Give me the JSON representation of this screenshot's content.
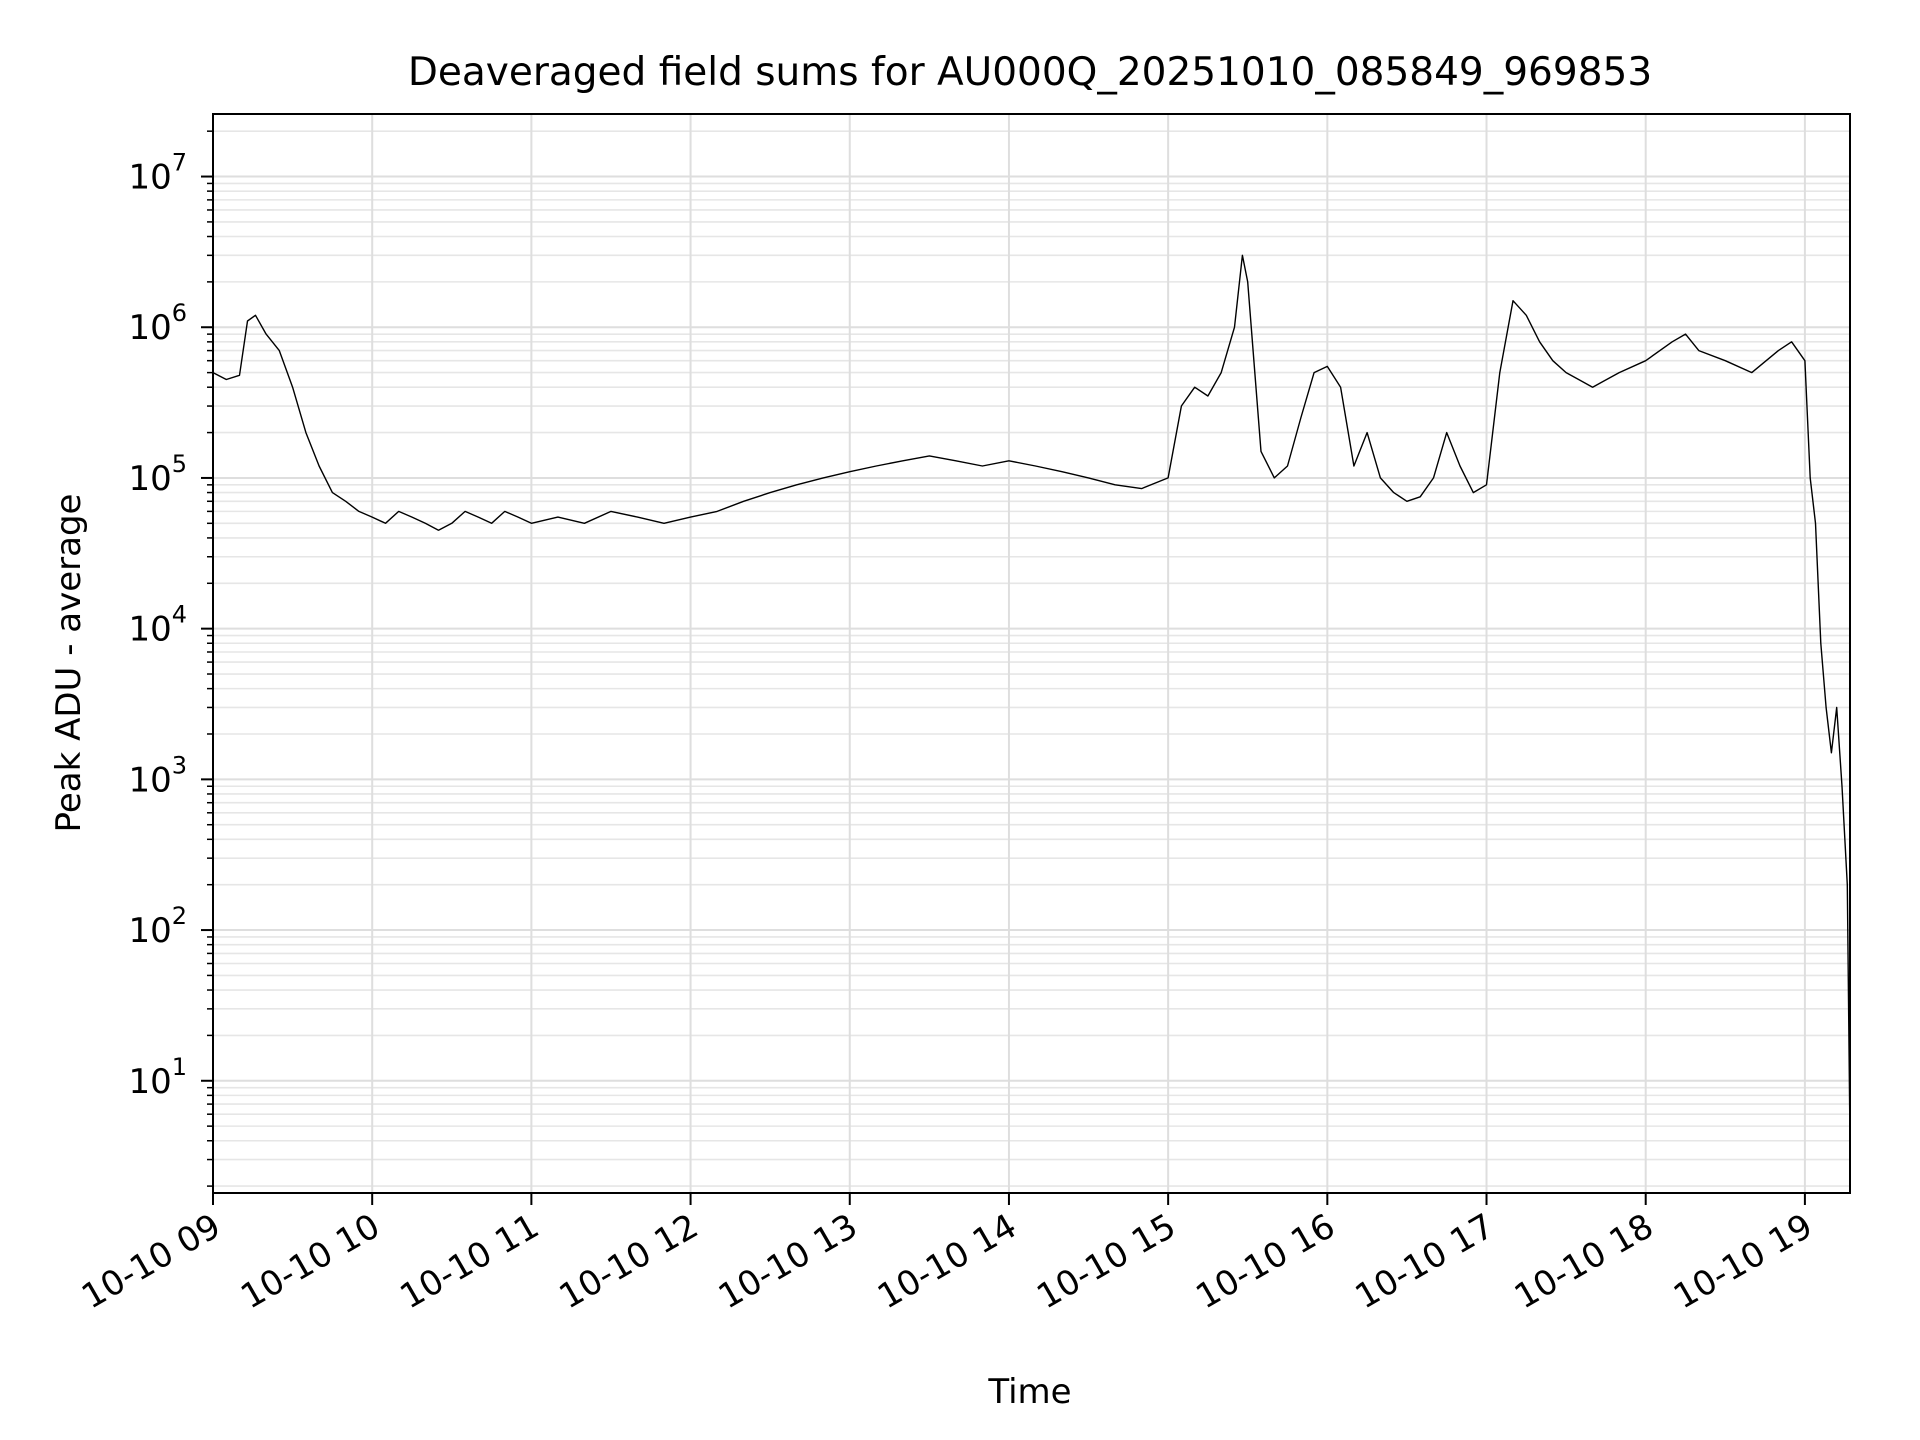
{
  "chart_data": {
    "type": "line",
    "title": "Deaveraged field sums for AU000Q_20251010_085849_969853",
    "xlabel": "Time",
    "ylabel": "Peak ADU - average",
    "yscale": "log",
    "xlim": [
      "2025-10-10 09:00",
      "2025-10-10 19:17"
    ],
    "ylim": [
      1.8,
      26000000
    ],
    "grid": true,
    "x_tick_labels": [
      "10-10 09",
      "10-10 10",
      "10-10 11",
      "10-10 12",
      "10-10 13",
      "10-10 14",
      "10-10 15",
      "10-10 16",
      "10-10 17",
      "10-10 18",
      "10-10 19"
    ],
    "y_tick_labels": [
      {
        "base": "10",
        "exp": "1"
      },
      {
        "base": "10",
        "exp": "2"
      },
      {
        "base": "10",
        "exp": "3"
      },
      {
        "base": "10",
        "exp": "4"
      },
      {
        "base": "10",
        "exp": "5"
      },
      {
        "base": "10",
        "exp": "6"
      },
      {
        "base": "10",
        "exp": "7"
      }
    ],
    "series": [
      {
        "color": "#000000",
        "x": [
          "2025-10-10 09:00",
          "2025-10-10 09:05",
          "2025-10-10 09:10",
          "2025-10-10 09:13",
          "2025-10-10 09:16",
          "2025-10-10 09:20",
          "2025-10-10 09:25",
          "2025-10-10 09:30",
          "2025-10-10 09:35",
          "2025-10-10 09:40",
          "2025-10-10 09:45",
          "2025-10-10 09:50",
          "2025-10-10 09:55",
          "2025-10-10 10:00",
          "2025-10-10 10:05",
          "2025-10-10 10:10",
          "2025-10-10 10:15",
          "2025-10-10 10:20",
          "2025-10-10 10:25",
          "2025-10-10 10:30",
          "2025-10-10 10:35",
          "2025-10-10 10:40",
          "2025-10-10 10:45",
          "2025-10-10 10:50",
          "2025-10-10 10:55",
          "2025-10-10 11:00",
          "2025-10-10 11:10",
          "2025-10-10 11:20",
          "2025-10-10 11:30",
          "2025-10-10 11:40",
          "2025-10-10 11:50",
          "2025-10-10 12:00",
          "2025-10-10 12:10",
          "2025-10-10 12:20",
          "2025-10-10 12:30",
          "2025-10-10 12:40",
          "2025-10-10 12:50",
          "2025-10-10 13:00",
          "2025-10-10 13:10",
          "2025-10-10 13:20",
          "2025-10-10 13:30",
          "2025-10-10 13:40",
          "2025-10-10 13:50",
          "2025-10-10 14:00",
          "2025-10-10 14:10",
          "2025-10-10 14:20",
          "2025-10-10 14:30",
          "2025-10-10 14:40",
          "2025-10-10 14:50",
          "2025-10-10 15:00",
          "2025-10-10 15:05",
          "2025-10-10 15:10",
          "2025-10-10 15:15",
          "2025-10-10 15:20",
          "2025-10-10 15:25",
          "2025-10-10 15:28",
          "2025-10-10 15:30",
          "2025-10-10 15:35",
          "2025-10-10 15:40",
          "2025-10-10 15:45",
          "2025-10-10 15:50",
          "2025-10-10 15:55",
          "2025-10-10 16:00",
          "2025-10-10 16:05",
          "2025-10-10 16:10",
          "2025-10-10 16:15",
          "2025-10-10 16:20",
          "2025-10-10 16:25",
          "2025-10-10 16:30",
          "2025-10-10 16:35",
          "2025-10-10 16:40",
          "2025-10-10 16:45",
          "2025-10-10 16:50",
          "2025-10-10 16:55",
          "2025-10-10 17:00",
          "2025-10-10 17:05",
          "2025-10-10 17:10",
          "2025-10-10 17:15",
          "2025-10-10 17:20",
          "2025-10-10 17:25",
          "2025-10-10 17:30",
          "2025-10-10 17:40",
          "2025-10-10 17:50",
          "2025-10-10 18:00",
          "2025-10-10 18:10",
          "2025-10-10 18:15",
          "2025-10-10 18:20",
          "2025-10-10 18:30",
          "2025-10-10 18:40",
          "2025-10-10 18:50",
          "2025-10-10 18:55",
          "2025-10-10 19:00",
          "2025-10-10 19:02",
          "2025-10-10 19:04",
          "2025-10-10 19:06",
          "2025-10-10 19:08",
          "2025-10-10 19:10",
          "2025-10-10 19:12",
          "2025-10-10 19:14",
          "2025-10-10 19:16",
          "2025-10-10 19:17"
        ],
        "y": [
          500000,
          450000,
          480000,
          1100000,
          1200000,
          900000,
          700000,
          400000,
          200000,
          120000,
          80000,
          70000,
          60000,
          55000,
          50000,
          60000,
          55000,
          50000,
          45000,
          50000,
          60000,
          55000,
          50000,
          60000,
          55000,
          50000,
          55000,
          50000,
          60000,
          55000,
          50000,
          55000,
          60000,
          70000,
          80000,
          90000,
          100000,
          110000,
          120000,
          130000,
          140000,
          130000,
          120000,
          130000,
          120000,
          110000,
          100000,
          90000,
          85000,
          100000,
          300000,
          400000,
          350000,
          500000,
          1000000,
          3000000,
          2000000,
          150000,
          100000,
          120000,
          250000,
          500000,
          550000,
          400000,
          120000,
          200000,
          100000,
          80000,
          70000,
          75000,
          100000,
          200000,
          120000,
          80000,
          90000,
          500000,
          1500000,
          1200000,
          800000,
          600000,
          500000,
          400000,
          500000,
          600000,
          800000,
          900000,
          700000,
          600000,
          500000,
          700000,
          800000,
          600000,
          100000,
          50000,
          8000,
          3000,
          1500,
          3000,
          900,
          200,
          4
        ]
      }
    ]
  }
}
